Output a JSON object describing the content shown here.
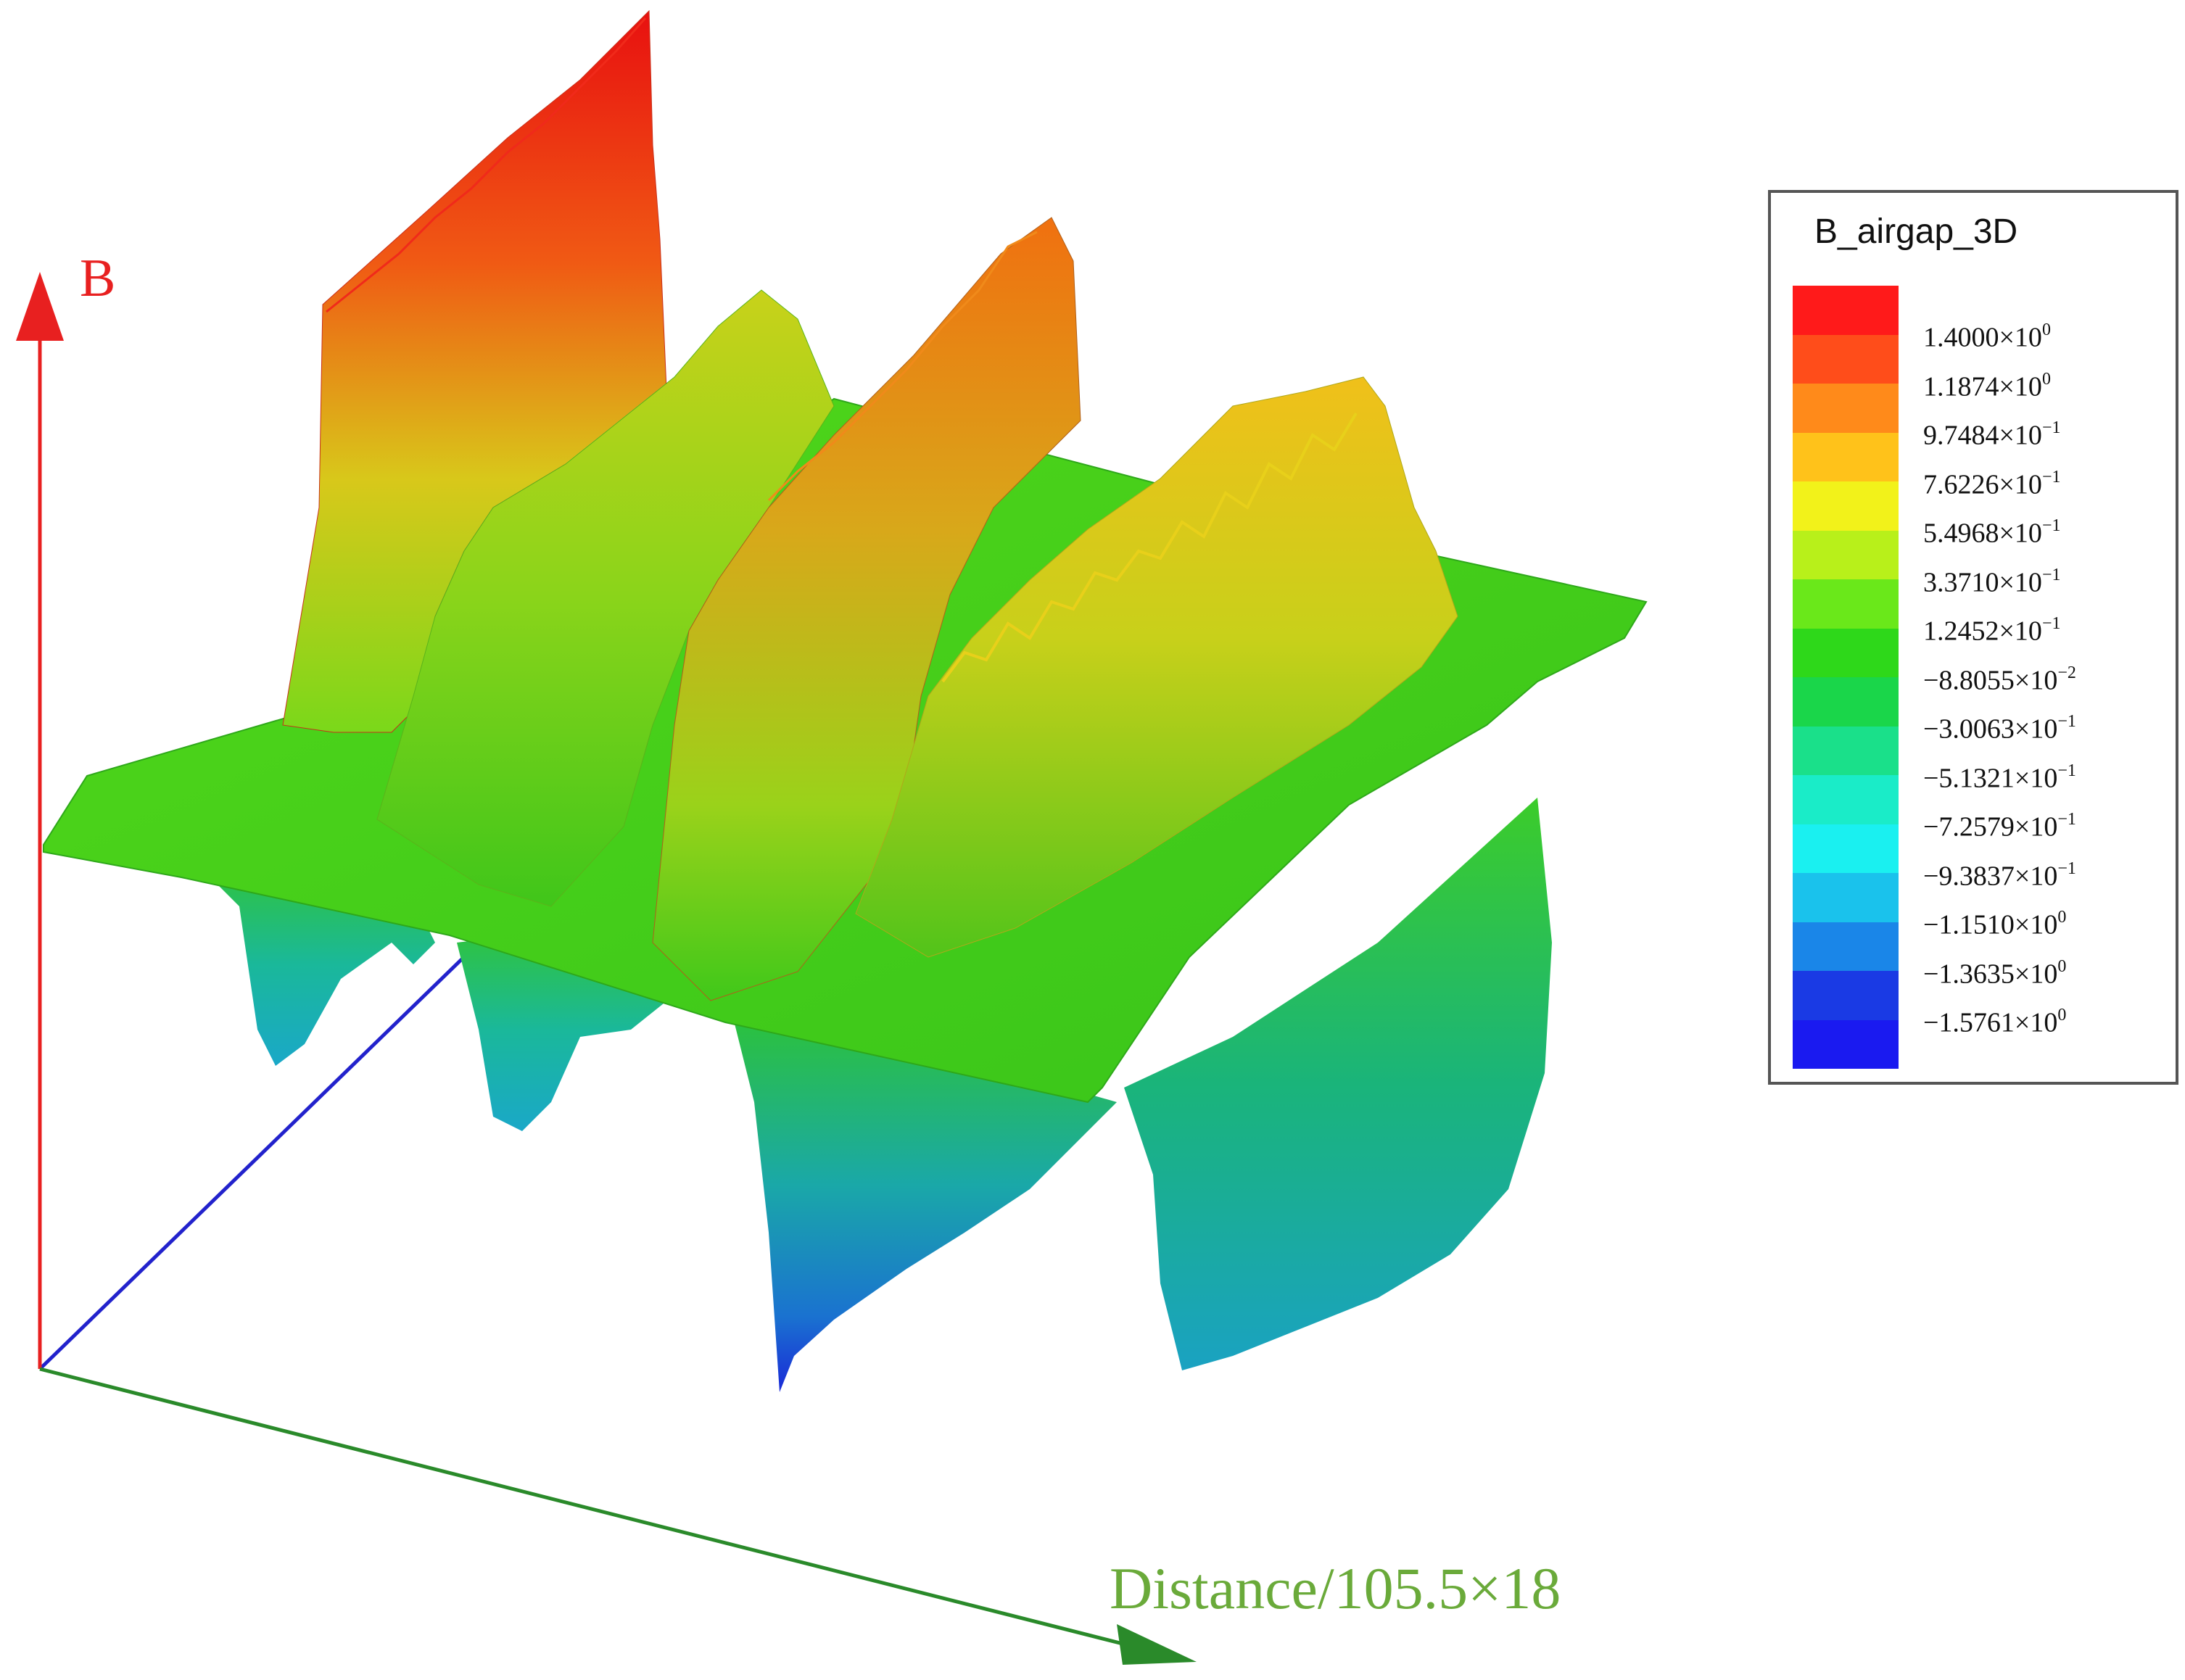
{
  "chart_data": {
    "type": "surface3d",
    "z_axis_label": "B",
    "x_axis_label": "Distance/105.5×18",
    "legend": {
      "title": "B_airgap_3D",
      "entries": [
        {
          "mantissa": "1.4000",
          "exp": "0",
          "color": "#ff1a1a"
        },
        {
          "mantissa": "1.1874",
          "exp": "0",
          "color": "#ff4d1a"
        },
        {
          "mantissa": "9.7484",
          "exp": "−1",
          "color": "#ff8a1a"
        },
        {
          "mantissa": "7.6226",
          "exp": "−1",
          "color": "#ffc21a"
        },
        {
          "mantissa": "5.4968",
          "exp": "−1",
          "color": "#f2f21a"
        },
        {
          "mantissa": "3.3710",
          "exp": "−1",
          "color": "#b8f01a"
        },
        {
          "mantissa": "1.2452",
          "exp": "−1",
          "color": "#6ae81a"
        },
        {
          "mantissa": "−8.8055",
          "exp": "−2",
          "color": "#2ed81a"
        },
        {
          "mantissa": "−3.0063",
          "exp": "−1",
          "color": "#1ad64a"
        },
        {
          "mantissa": "−5.1321",
          "exp": "−1",
          "color": "#1ae08a"
        },
        {
          "mantissa": "−7.2579",
          "exp": "−1",
          "color": "#1aecc8"
        },
        {
          "mantissa": "−9.3837",
          "exp": "−1",
          "color": "#1af0f0"
        },
        {
          "mantissa": "−1.1510",
          "exp": "0",
          "color": "#1ac2ec"
        },
        {
          "mantissa": "−1.3635",
          "exp": "0",
          "color": "#1a86e8"
        },
        {
          "mantissa": "−1.5761",
          "exp": "0",
          "color": "#1a3ae4"
        },
        {
          "mantissa": "",
          "exp": "",
          "color": "#1a1af0"
        }
      ]
    },
    "value_range": [
      -1.5761,
      1.4
    ],
    "peaks": [
      {
        "order": 1,
        "sign": "positive",
        "approx_max": 1.4
      },
      {
        "order": 2,
        "sign": "positive",
        "approx_max": 0.7
      },
      {
        "order": 3,
        "sign": "positive",
        "approx_max": 1.0
      },
      {
        "order": 4,
        "sign": "positive",
        "approx_max": 0.65
      }
    ],
    "troughs": [
      {
        "order": 1,
        "sign": "negative",
        "approx_min": -0.75
      },
      {
        "order": 2,
        "sign": "negative",
        "approx_min": -0.85
      },
      {
        "order": 3,
        "sign": "negative",
        "approx_min": -1.57
      },
      {
        "order": 4,
        "sign": "negative",
        "approx_min": -0.95
      }
    ],
    "colors": {
      "z_axis": "#e82020",
      "x_axis": "#2a8a2a",
      "y_axis": "#2222cc",
      "x_label": "#6aaa3a"
    }
  }
}
